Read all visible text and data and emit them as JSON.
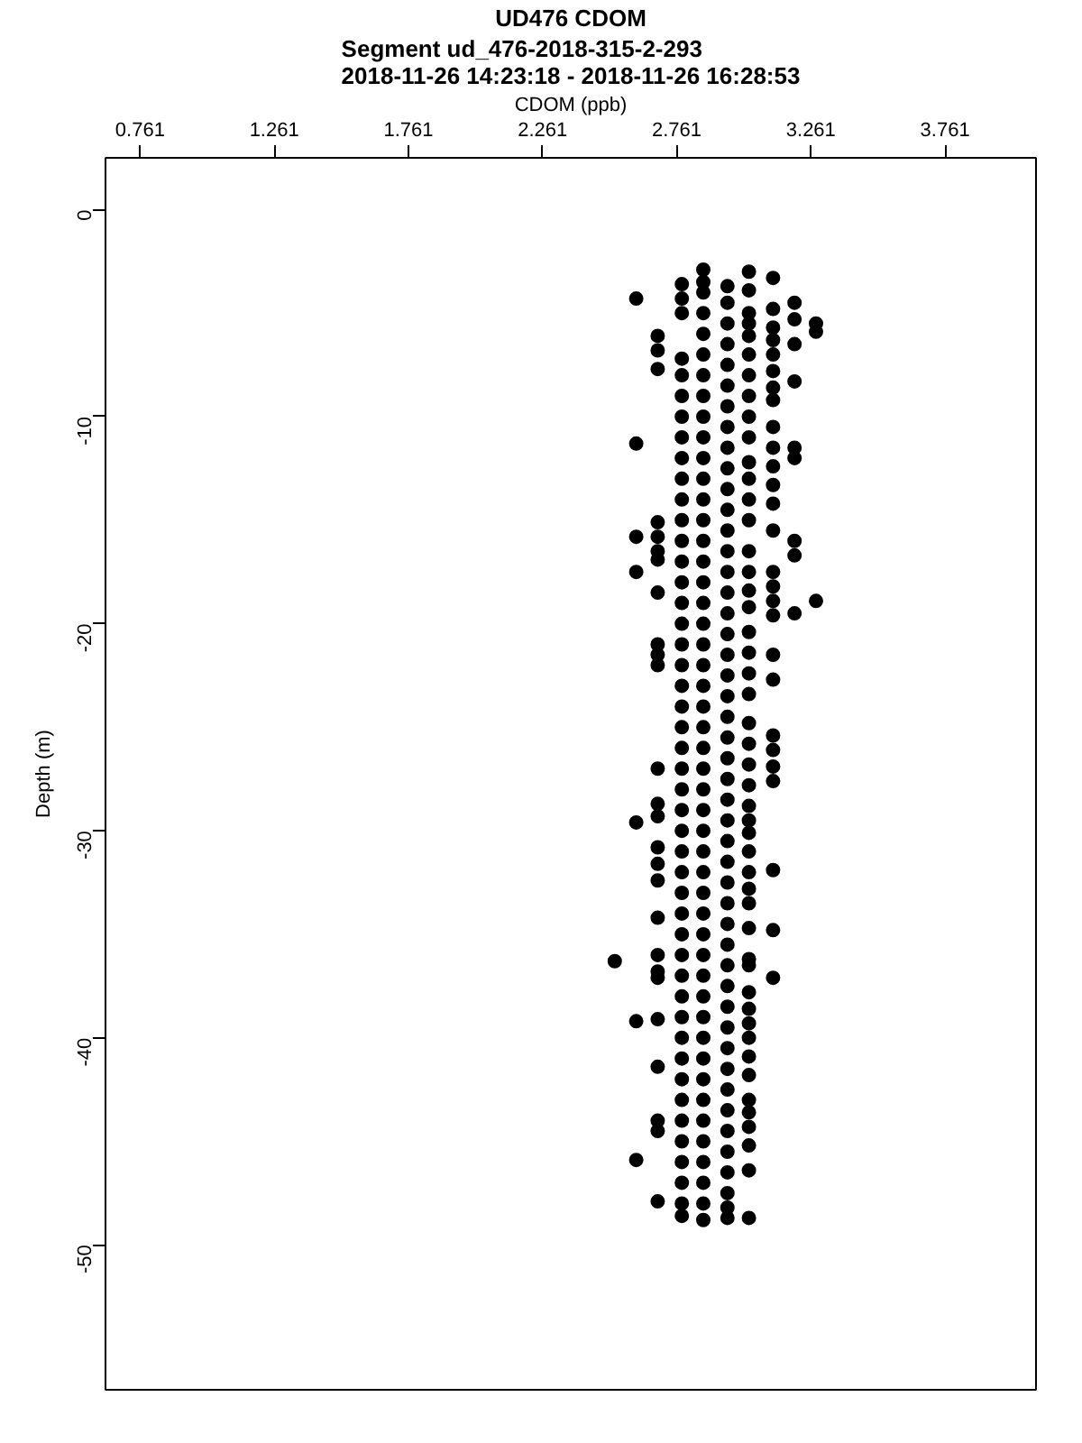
{
  "chart_data": {
    "type": "scatter",
    "title": "UD476 CDOM",
    "subtitle": "Segment ud_476-2018-315-2-293\n2018-11-26 14:23:18 - 2018-11-26 16:28:53",
    "xlabel": "CDOM (ppb)",
    "ylabel": "Depth (m)",
    "xlim": [
      0.632,
      4.1
    ],
    "ylim": [
      -57,
      2.5
    ],
    "xticks": [
      0.761,
      1.261,
      1.761,
      2.261,
      2.761,
      3.261,
      3.761
    ],
    "yticks": [
      0,
      -10,
      -20,
      -30,
      -40,
      -50
    ],
    "grid": false,
    "marker": "circle",
    "series": [
      {
        "color": "#000000",
        "x": [
          2.53
        ],
        "values": [
          -36.3
        ]
      },
      {
        "color": "#000000",
        "x": [
          2.61,
          2.61,
          2.61,
          2.61,
          2.61,
          2.61,
          2.61
        ],
        "values": [
          -4.3,
          -11.3,
          -15.8,
          -17.5,
          -29.6,
          -39.2,
          -45.9
        ]
      },
      {
        "color": "#000000",
        "x": [
          2.69,
          2.69,
          2.69,
          2.69,
          2.69,
          2.69,
          2.69,
          2.69,
          2.69,
          2.69,
          2.69,
          2.69,
          2.69,
          2.69,
          2.69,
          2.69,
          2.69,
          2.69,
          2.69,
          2.69,
          2.69,
          2.69,
          2.69,
          2.69,
          2.69,
          2.69
        ],
        "values": [
          -6.1,
          -6.8,
          -7.7,
          -15.1,
          -15.8,
          -16.5,
          -16.9,
          -18.5,
          -21.0,
          -21.5,
          -27.0,
          -28.7,
          -29.3,
          -30.8,
          -31.6,
          -32.4,
          -34.2,
          -36.0,
          -36.8,
          -37.1,
          -39.1,
          -41.4,
          -44.0,
          -44.5,
          -47.9,
          -22.0
        ]
      },
      {
        "color": "#000000",
        "x": [
          2.78,
          2.78,
          2.78,
          2.78,
          2.78,
          2.78,
          2.78,
          2.78,
          2.78,
          2.78,
          2.78,
          2.78,
          2.78,
          2.78,
          2.78,
          2.78,
          2.78,
          2.78,
          2.78,
          2.78,
          2.78,
          2.78,
          2.78,
          2.78,
          2.78,
          2.78,
          2.78,
          2.78,
          2.78,
          2.78,
          2.78,
          2.78,
          2.78,
          2.78,
          2.78,
          2.78,
          2.78,
          2.78,
          2.78,
          2.78,
          2.78,
          2.78,
          2.78,
          2.78,
          2.78,
          2.78
        ],
        "values": [
          -3.6,
          -4.3,
          -5.0,
          -7.2,
          -8.0,
          -9.0,
          -10.0,
          -11.0,
          -12.0,
          -13.0,
          -14.0,
          -15.0,
          -16.0,
          -17.0,
          -18.0,
          -19.0,
          -20.0,
          -21.0,
          -22.0,
          -23.0,
          -24.0,
          -25.0,
          -26.0,
          -27.0,
          -28.0,
          -29.0,
          -30.0,
          -31.0,
          -32.0,
          -33.0,
          -34.0,
          -35.0,
          -36.0,
          -37.0,
          -38.0,
          -39.0,
          -40.0,
          -41.0,
          -42.0,
          -43.0,
          -44.0,
          -45.0,
          -46.0,
          -47.0,
          -48.0,
          -48.6
        ]
      },
      {
        "color": "#000000",
        "x": [
          2.86,
          2.86,
          2.86,
          2.86,
          2.86,
          2.86,
          2.86,
          2.86,
          2.86,
          2.86,
          2.86,
          2.86,
          2.86,
          2.86,
          2.86,
          2.86,
          2.86,
          2.86,
          2.86,
          2.86,
          2.86,
          2.86,
          2.86,
          2.86,
          2.86,
          2.86,
          2.86,
          2.86,
          2.86,
          2.86,
          2.86,
          2.86,
          2.86,
          2.86,
          2.86,
          2.86,
          2.86,
          2.86,
          2.86,
          2.86,
          2.86,
          2.86,
          2.86,
          2.86,
          2.86,
          2.86,
          2.86,
          2.86
        ],
        "values": [
          -2.9,
          -3.5,
          -4.0,
          -5.0,
          -6.0,
          -7.0,
          -8.0,
          -9.0,
          -10.0,
          -11.0,
          -12.0,
          -13.0,
          -14.0,
          -15.0,
          -16.0,
          -17.0,
          -18.0,
          -19.0,
          -20.0,
          -21.0,
          -22.0,
          -23.0,
          -24.0,
          -25.0,
          -26.0,
          -27.0,
          -28.0,
          -29.0,
          -30.0,
          -31.0,
          -32.0,
          -33.0,
          -34.0,
          -35.0,
          -36.0,
          -37.0,
          -38.0,
          -39.0,
          -40.0,
          -41.0,
          -42.0,
          -43.0,
          -44.0,
          -45.0,
          -46.0,
          -47.0,
          -48.0,
          -48.8
        ]
      },
      {
        "color": "#000000",
        "x": [
          2.95,
          2.95,
          2.95,
          2.95,
          2.95,
          2.95,
          2.95,
          2.95,
          2.95,
          2.95,
          2.95,
          2.95,
          2.95,
          2.95,
          2.95,
          2.95,
          2.95,
          2.95,
          2.95,
          2.95,
          2.95,
          2.95,
          2.95,
          2.95,
          2.95,
          2.95,
          2.95,
          2.95,
          2.95,
          2.95,
          2.95,
          2.95,
          2.95,
          2.95,
          2.95,
          2.95,
          2.95,
          2.95,
          2.95,
          2.95,
          2.95,
          2.95,
          2.95,
          2.95,
          2.95,
          2.95,
          2.95
        ],
        "values": [
          -3.7,
          -4.5,
          -5.5,
          -6.5,
          -7.5,
          -8.5,
          -9.5,
          -10.5,
          -11.5,
          -12.5,
          -13.5,
          -14.5,
          -15.5,
          -16.5,
          -17.5,
          -18.5,
          -19.5,
          -20.5,
          -21.5,
          -22.5,
          -23.5,
          -24.5,
          -25.5,
          -26.5,
          -27.5,
          -28.5,
          -29.5,
          -30.5,
          -31.5,
          -32.5,
          -33.5,
          -34.5,
          -35.5,
          -36.5,
          -37.5,
          -38.5,
          -39.5,
          -40.5,
          -41.5,
          -42.5,
          -43.5,
          -44.5,
          -45.5,
          -46.5,
          -47.5,
          -48.2,
          -48.7
        ]
      },
      {
        "color": "#000000",
        "x": [
          3.03,
          3.03,
          3.03,
          3.03,
          3.03,
          3.03,
          3.03,
          3.03,
          3.03,
          3.03,
          3.03,
          3.03,
          3.03,
          3.03,
          3.03,
          3.03,
          3.03,
          3.03,
          3.03,
          3.03,
          3.03,
          3.03,
          3.03,
          3.03,
          3.03,
          3.03,
          3.03,
          3.03,
          3.03,
          3.03,
          3.03,
          3.03,
          3.03,
          3.03,
          3.03,
          3.03,
          3.03,
          3.03,
          3.03,
          3.03,
          3.03,
          3.03,
          3.03,
          3.03,
          3.03,
          3.03,
          3.03,
          3.03
        ],
        "values": [
          -3.0,
          -3.9,
          -5.0,
          -6.1,
          -7.0,
          -8.0,
          -9.0,
          -10.0,
          -11.0,
          -12.2,
          -13.0,
          -14.0,
          -15.0,
          -16.5,
          -17.5,
          -18.4,
          -19.2,
          -20.4,
          -21.4,
          -22.4,
          -23.4,
          -24.8,
          -25.8,
          -26.8,
          -27.8,
          -28.8,
          -30.1,
          -31.0,
          -32.0,
          -32.8,
          -33.5,
          -34.7,
          -36.2,
          -36.5,
          -37.8,
          -38.6,
          -39.3,
          -40.0,
          -40.9,
          -41.8,
          -43.0,
          -43.6,
          -44.3,
          -45.2,
          -46.4,
          -48.7,
          -5.5,
          -29.5
        ]
      },
      {
        "color": "#000000",
        "x": [
          3.12,
          3.12,
          3.12,
          3.12,
          3.12,
          3.12,
          3.12,
          3.12,
          3.12,
          3.12,
          3.12,
          3.12,
          3.12,
          3.12,
          3.12,
          3.12,
          3.12,
          3.12,
          3.12,
          3.12,
          3.12,
          3.12,
          3.12,
          3.12,
          3.12,
          3.12,
          3.12
        ],
        "values": [
          -3.3,
          -4.8,
          -5.7,
          -7.0,
          -7.8,
          -8.6,
          -9.2,
          -10.5,
          -11.5,
          -12.4,
          -13.3,
          -14.2,
          -15.5,
          -17.5,
          -18.2,
          -18.9,
          -19.6,
          -21.5,
          -22.7,
          -25.4,
          -26.1,
          -26.9,
          -27.6,
          -31.9,
          -34.8,
          -37.1,
          -6.3
        ]
      },
      {
        "color": "#000000",
        "x": [
          3.2,
          3.2,
          3.2,
          3.2,
          3.2,
          3.2,
          3.2,
          3.2,
          3.2
        ],
        "values": [
          -4.5,
          -5.3,
          -6.5,
          -8.3,
          -11.5,
          -12.0,
          -16.0,
          -16.7,
          -19.5
        ]
      },
      {
        "color": "#000000",
        "x": [
          3.28,
          3.28,
          3.28
        ],
        "values": [
          -5.5,
          -5.9,
          -18.9
        ]
      }
    ]
  }
}
